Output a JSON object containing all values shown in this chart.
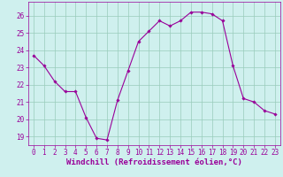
{
  "hours": [
    0,
    1,
    2,
    3,
    4,
    5,
    6,
    7,
    8,
    9,
    10,
    11,
    12,
    13,
    14,
    15,
    16,
    17,
    18,
    19,
    20,
    21,
    22,
    23
  ],
  "values": [
    23.7,
    23.1,
    22.2,
    21.6,
    21.6,
    20.1,
    18.9,
    18.8,
    21.1,
    22.8,
    24.5,
    25.1,
    25.7,
    25.4,
    25.7,
    26.2,
    26.2,
    26.1,
    25.7,
    23.1,
    21.2,
    21.0,
    20.5,
    20.3
  ],
  "line_color": "#990099",
  "marker_color": "#990099",
  "bg_color": "#cff0ee",
  "grid_color": "#99ccbb",
  "xlabel": "Windchill (Refroidissement éolien,°C)",
  "xlim": [
    -0.5,
    23.5
  ],
  "ylim": [
    18.5,
    26.8
  ],
  "yticks": [
    19,
    20,
    21,
    22,
    23,
    24,
    25,
    26
  ],
  "xticks": [
    0,
    1,
    2,
    3,
    4,
    5,
    6,
    7,
    8,
    9,
    10,
    11,
    12,
    13,
    14,
    15,
    16,
    17,
    18,
    19,
    20,
    21,
    22,
    23
  ],
  "font_color": "#990099",
  "tick_fontsize": 5.5,
  "xlabel_fontsize": 6.5
}
